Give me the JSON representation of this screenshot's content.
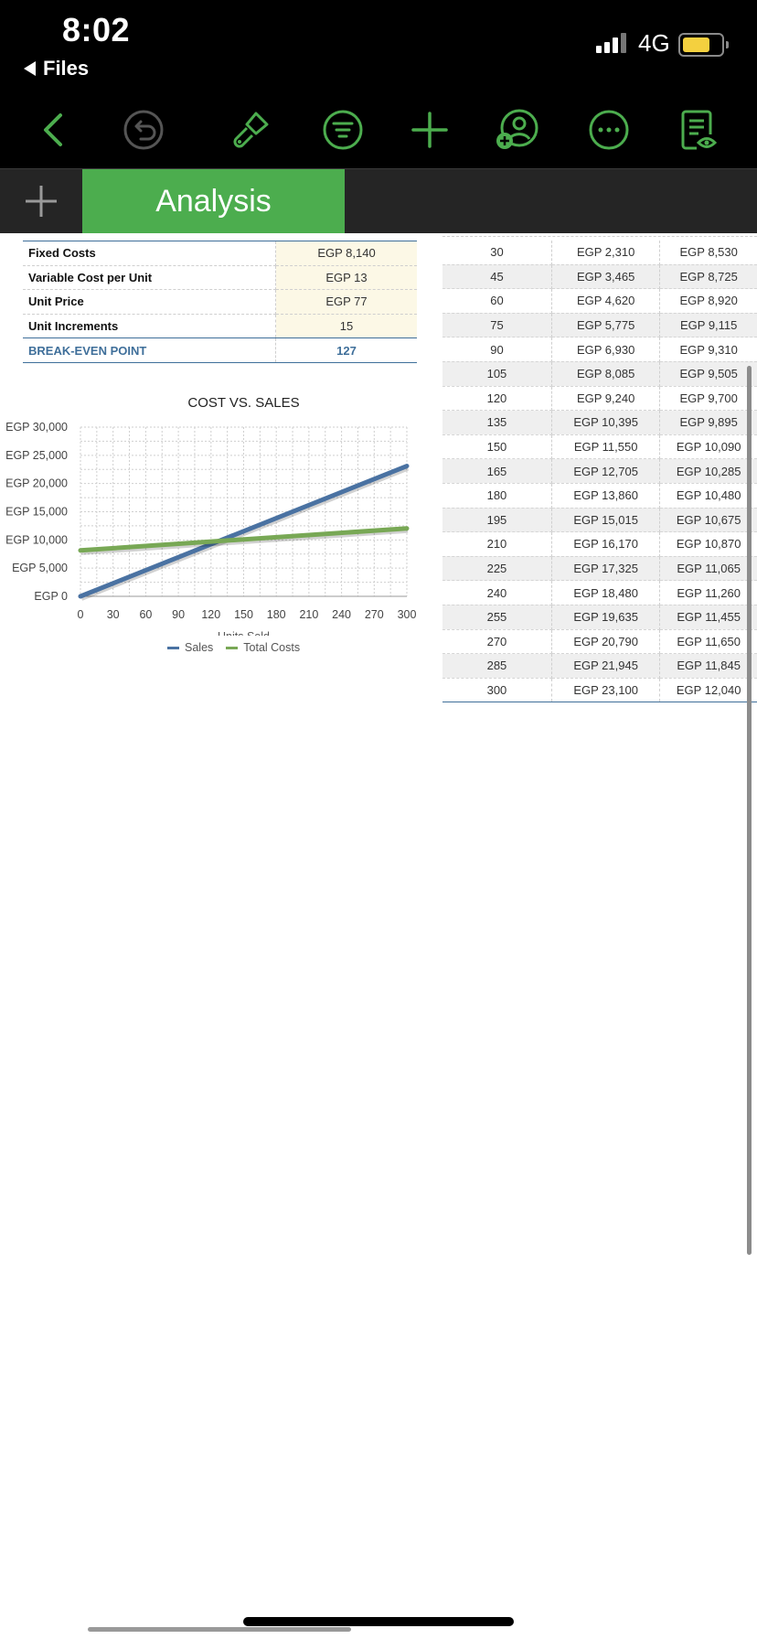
{
  "status_bar": {
    "time": "8:02",
    "back_label": "Files",
    "network": "4G"
  },
  "toolbar": {
    "buttons": [
      "back-chevron-icon",
      "undo-icon",
      "format-brush-icon",
      "filter-icon",
      "add-icon",
      "collaborate-icon",
      "more-icon",
      "reading-view-icon"
    ]
  },
  "tabs": {
    "active_label": "Analysis"
  },
  "colors": {
    "accent": "#4cad4e",
    "sales": "#4a72a2",
    "total_costs": "#78a855",
    "header_blue": "#3f6f9a"
  },
  "params": {
    "rows": [
      {
        "label": "Fixed Costs",
        "value": "EGP 8,140"
      },
      {
        "label": "Variable Cost per Unit",
        "value": "EGP 13"
      },
      {
        "label": "Unit Price",
        "value": "EGP 77"
      },
      {
        "label": "Unit Increments",
        "value": "15"
      },
      {
        "label": "BREAK-EVEN POINT",
        "value": "127"
      }
    ]
  },
  "data_table": {
    "rows": [
      [
        "30",
        "EGP 2,310",
        "EGP 8,530"
      ],
      [
        "45",
        "EGP 3,465",
        "EGP 8,725"
      ],
      [
        "60",
        "EGP 4,620",
        "EGP 8,920"
      ],
      [
        "75",
        "EGP 5,775",
        "EGP 9,115"
      ],
      [
        "90",
        "EGP 6,930",
        "EGP 9,310"
      ],
      [
        "105",
        "EGP 8,085",
        "EGP 9,505"
      ],
      [
        "120",
        "EGP 9,240",
        "EGP 9,700"
      ],
      [
        "135",
        "EGP 10,395",
        "EGP 9,895"
      ],
      [
        "150",
        "EGP 11,550",
        "EGP 10,090"
      ],
      [
        "165",
        "EGP 12,705",
        "EGP 10,285"
      ],
      [
        "180",
        "EGP 13,860",
        "EGP 10,480"
      ],
      [
        "195",
        "EGP 15,015",
        "EGP 10,675"
      ],
      [
        "210",
        "EGP 16,170",
        "EGP 10,870"
      ],
      [
        "225",
        "EGP 17,325",
        "EGP 11,065"
      ],
      [
        "240",
        "EGP 18,480",
        "EGP 11,260"
      ],
      [
        "255",
        "EGP 19,635",
        "EGP 11,455"
      ],
      [
        "270",
        "EGP 20,790",
        "EGP 11,650"
      ],
      [
        "285",
        "EGP 21,945",
        "EGP 11,845"
      ],
      [
        "300",
        "EGP 23,100",
        "EGP 12,040"
      ]
    ]
  },
  "chart_data": {
    "type": "line",
    "title": "COST VS. SALES",
    "xlabel": "Units Sold",
    "ylabel": "",
    "xlim": [
      0,
      300
    ],
    "ylim": [
      0,
      30000
    ],
    "x_ticks": [
      "0",
      "30",
      "60",
      "90",
      "120",
      "150",
      "180",
      "210",
      "240",
      "270",
      "300"
    ],
    "y_ticks": [
      "EGP 0",
      "EGP 5,000",
      "EGP 10,000",
      "EGP 15,000",
      "EGP 20,000",
      "EGP 25,000",
      "EGP 30,000"
    ],
    "grid": true,
    "legend_position": "bottom",
    "x": [
      0,
      300
    ],
    "series": [
      {
        "name": "Sales",
        "values": [
          0,
          23100
        ]
      },
      {
        "name": "Total Costs",
        "values": [
          8140,
          12040
        ]
      }
    ]
  }
}
